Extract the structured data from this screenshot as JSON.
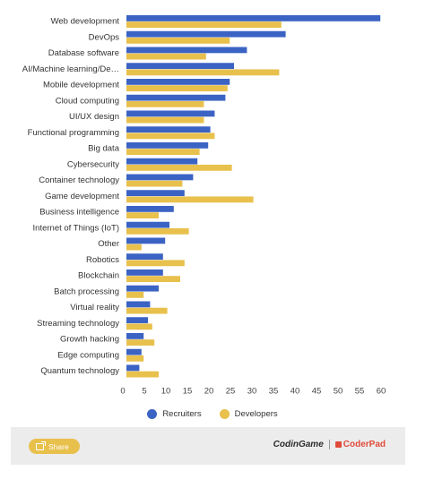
{
  "chart_data": {
    "type": "bar",
    "orientation": "horizontal",
    "categories": [
      "Web development",
      "DevOps",
      "Database software",
      "AI/Machine learning/De…",
      "Mobile development",
      "Cloud computing",
      "UI/UX design",
      "Functional programming",
      "Big data",
      "Cybersecurity",
      "Container technology",
      "Game development",
      "Business intelligence",
      "Internet of Things (IoT)",
      "Other",
      "Robotics",
      "Blockchain",
      "Batch processing",
      "Virtual reality",
      "Streaming technology",
      "Growth hacking",
      "Edge computing",
      "Quantum technology"
    ],
    "series": [
      {
        "name": "Recruiters",
        "color": "#3b63c4",
        "values": [
          59,
          37,
          28,
          25,
          24,
          23,
          20.5,
          19.5,
          19,
          16.5,
          15.5,
          13.5,
          11,
          10,
          9,
          8.5,
          8.5,
          7.5,
          5.5,
          5,
          4,
          3.5,
          3
        ]
      },
      {
        "name": "Developers",
        "color": "#e8c04c",
        "values": [
          36,
          24,
          18.5,
          35.5,
          23.5,
          18,
          18,
          20.5,
          17,
          24.5,
          13,
          29.5,
          7.5,
          14.5,
          3.5,
          13.5,
          12.5,
          4,
          9.5,
          6,
          6.5,
          4,
          7.5
        ]
      }
    ],
    "x_ticks": [
      0,
      5,
      10,
      15,
      20,
      25,
      30,
      35,
      40,
      45,
      50,
      55,
      60
    ],
    "xlim": [
      0,
      60
    ],
    "grid": false,
    "legend_position": "bottom-center"
  },
  "legend": {
    "recruiters": "Recruiters",
    "developers": "Developers"
  },
  "footer": {
    "share_label": "Share",
    "share_icon": "share-icon",
    "brand_codingame": "CodinGame",
    "brand_coderpad": "CoderPad"
  }
}
